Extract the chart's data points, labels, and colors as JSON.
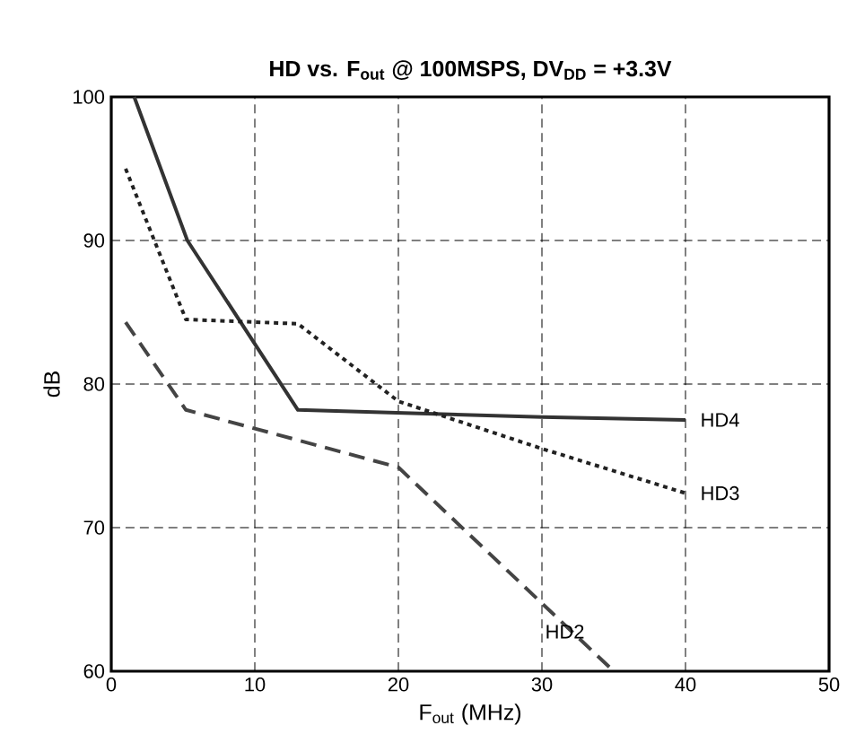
{
  "chart_data": {
    "type": "line",
    "title": "HD vs. F$_{out}$ @ 100MSPS, DV$_{DD}$ = +3.3V",
    "xlabel": "F$_{out}$ (MHz)",
    "ylabel": "dB",
    "xlim": [
      0,
      50
    ],
    "xticks": [
      0,
      10,
      20,
      30,
      40,
      50
    ],
    "ylim": [
      60,
      100
    ],
    "yticks": [
      60,
      70,
      80,
      90,
      100
    ],
    "grid": true,
    "legend": false,
    "series": [
      {
        "name": "HD4",
        "color": "#333333",
        "line_style": "solid",
        "x": [
          1.6,
          5.3,
          13,
          30,
          40
        ],
        "values": [
          100,
          90,
          78.2,
          77.7,
          77.5
        ]
      },
      {
        "name": "HD3",
        "color": "#222222",
        "line_style": "dotted",
        "x": [
          1,
          5.2,
          13,
          20,
          30,
          40
        ],
        "values": [
          95,
          84.5,
          84.2,
          78.8,
          75.5,
          72.4
        ]
      },
      {
        "name": "HD2",
        "color": "#444444",
        "line_style": "dashed",
        "x": [
          1,
          5.2,
          20,
          35
        ],
        "values": [
          84.3,
          78.2,
          74.2,
          60
        ]
      }
    ]
  }
}
